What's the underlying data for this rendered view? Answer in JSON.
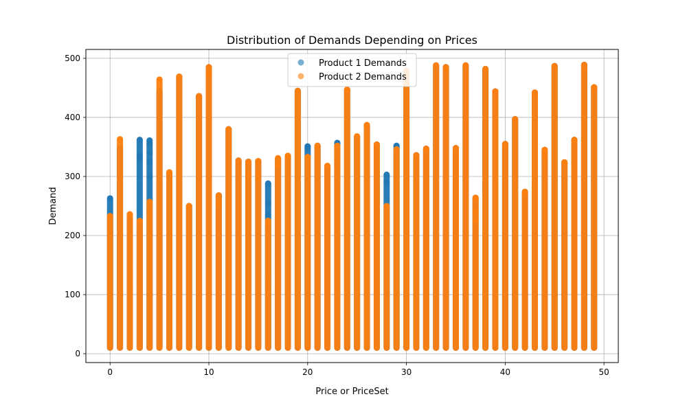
{
  "chart_data": {
    "type": "scatter",
    "title": "Distribution of Demands Depending on Prices",
    "xlabel": "Price or PriceSet",
    "ylabel": "Demand",
    "xlim": [
      -2.45,
      51.45
    ],
    "ylim": [
      -15,
      515
    ],
    "xticks": [
      0,
      10,
      20,
      30,
      40,
      50
    ],
    "yticks": [
      0,
      100,
      200,
      300,
      400,
      500
    ],
    "grid": true,
    "legend_position": "upper-center",
    "series": [
      {
        "name": "Product 1 Demands",
        "color": "#1f77b4",
        "points": [
          {
            "x": 0,
            "min": 10,
            "max": 263
          },
          {
            "x": 1,
            "min": 10,
            "max": 348
          },
          {
            "x": 2,
            "min": 10,
            "max": 228
          },
          {
            "x": 3,
            "min": 10,
            "max": 362
          },
          {
            "x": 4,
            "min": 10,
            "max": 361
          },
          {
            "x": 5,
            "min": 10,
            "max": 444
          },
          {
            "x": 6,
            "min": 10,
            "max": 306
          },
          {
            "x": 7,
            "min": 10,
            "max": 469
          },
          {
            "x": 8,
            "min": 10,
            "max": 250
          },
          {
            "x": 9,
            "min": 10,
            "max": 436
          },
          {
            "x": 10,
            "min": 10,
            "max": 485
          },
          {
            "x": 11,
            "min": 10,
            "max": 268
          },
          {
            "x": 12,
            "min": 10,
            "max": 380
          },
          {
            "x": 13,
            "min": 10,
            "max": 327
          },
          {
            "x": 14,
            "min": 10,
            "max": 325
          },
          {
            "x": 15,
            "min": 10,
            "max": 326
          },
          {
            "x": 16,
            "min": 10,
            "max": 288
          },
          {
            "x": 17,
            "min": 10,
            "max": 330
          },
          {
            "x": 18,
            "min": 10,
            "max": 334
          },
          {
            "x": 19,
            "min": 10,
            "max": 445
          },
          {
            "x": 20,
            "min": 10,
            "max": 351
          },
          {
            "x": 21,
            "min": 10,
            "max": 352
          },
          {
            "x": 22,
            "min": 10,
            "max": 317
          },
          {
            "x": 23,
            "min": 10,
            "max": 357
          },
          {
            "x": 24,
            "min": 10,
            "max": 447
          },
          {
            "x": 25,
            "min": 10,
            "max": 367
          },
          {
            "x": 26,
            "min": 10,
            "max": 387
          },
          {
            "x": 27,
            "min": 10,
            "max": 354
          },
          {
            "x": 28,
            "min": 10,
            "max": 303
          },
          {
            "x": 29,
            "min": 10,
            "max": 352
          },
          {
            "x": 30,
            "min": 10,
            "max": 479
          },
          {
            "x": 31,
            "min": 10,
            "max": 336
          },
          {
            "x": 32,
            "min": 10,
            "max": 347
          },
          {
            "x": 33,
            "min": 10,
            "max": 488
          },
          {
            "x": 34,
            "min": 10,
            "max": 485
          },
          {
            "x": 35,
            "min": 10,
            "max": 348
          },
          {
            "x": 36,
            "min": 10,
            "max": 488
          },
          {
            "x": 37,
            "min": 10,
            "max": 264
          },
          {
            "x": 38,
            "min": 10,
            "max": 482
          },
          {
            "x": 39,
            "min": 10,
            "max": 444
          },
          {
            "x": 40,
            "min": 10,
            "max": 355
          },
          {
            "x": 41,
            "min": 10,
            "max": 397
          },
          {
            "x": 42,
            "min": 10,
            "max": 274
          },
          {
            "x": 43,
            "min": 10,
            "max": 442
          },
          {
            "x": 44,
            "min": 10,
            "max": 345
          },
          {
            "x": 45,
            "min": 10,
            "max": 487
          },
          {
            "x": 46,
            "min": 10,
            "max": 324
          },
          {
            "x": 47,
            "min": 10,
            "max": 362
          },
          {
            "x": 48,
            "min": 10,
            "max": 489
          },
          {
            "x": 49,
            "min": 10,
            "max": 451
          }
        ],
        "outliers": [
          {
            "x": 3,
            "y": 335
          },
          {
            "x": 3,
            "y": 330
          },
          {
            "x": 3,
            "y": 200
          },
          {
            "x": 3,
            "y": 150
          },
          {
            "x": 3,
            "y": 120
          },
          {
            "x": 4,
            "y": 355
          },
          {
            "x": 4,
            "y": 340
          },
          {
            "x": 4,
            "y": 325
          },
          {
            "x": 4,
            "y": 300
          },
          {
            "x": 4,
            "y": 240
          },
          {
            "x": 8,
            "y": 170
          },
          {
            "x": 8,
            "y": 190
          },
          {
            "x": 8,
            "y": 210
          },
          {
            "x": 16,
            "y": 255
          },
          {
            "x": 16,
            "y": 235
          },
          {
            "x": 16,
            "y": 125
          },
          {
            "x": 18,
            "y": 318
          },
          {
            "x": 18,
            "y": 305
          },
          {
            "x": 20,
            "y": 348
          },
          {
            "x": 23,
            "y": 355
          },
          {
            "x": 28,
            "y": 290
          },
          {
            "x": 28,
            "y": 240
          },
          {
            "x": 29,
            "y": 350
          },
          {
            "x": 40,
            "y": 345
          }
        ]
      },
      {
        "name": "Product 2 Demands",
        "color": "#ff7f0e",
        "points": [
          {
            "x": 0,
            "min": 10,
            "max": 233
          },
          {
            "x": 1,
            "min": 10,
            "max": 363
          },
          {
            "x": 2,
            "min": 10,
            "max": 236
          },
          {
            "x": 3,
            "min": 10,
            "max": 225
          },
          {
            "x": 4,
            "min": 10,
            "max": 257
          },
          {
            "x": 5,
            "min": 10,
            "max": 464
          },
          {
            "x": 6,
            "min": 10,
            "max": 307
          },
          {
            "x": 7,
            "min": 10,
            "max": 469
          },
          {
            "x": 8,
            "min": 10,
            "max": 250
          },
          {
            "x": 9,
            "min": 10,
            "max": 436
          },
          {
            "x": 10,
            "min": 10,
            "max": 485
          },
          {
            "x": 11,
            "min": 10,
            "max": 268
          },
          {
            "x": 12,
            "min": 10,
            "max": 380
          },
          {
            "x": 13,
            "min": 10,
            "max": 327
          },
          {
            "x": 14,
            "min": 10,
            "max": 325
          },
          {
            "x": 15,
            "min": 10,
            "max": 326
          },
          {
            "x": 16,
            "min": 10,
            "max": 225
          },
          {
            "x": 17,
            "min": 10,
            "max": 331
          },
          {
            "x": 18,
            "min": 10,
            "max": 335
          },
          {
            "x": 19,
            "min": 10,
            "max": 445
          },
          {
            "x": 20,
            "min": 10,
            "max": 333
          },
          {
            "x": 21,
            "min": 10,
            "max": 352
          },
          {
            "x": 22,
            "min": 10,
            "max": 318
          },
          {
            "x": 23,
            "min": 10,
            "max": 352
          },
          {
            "x": 24,
            "min": 10,
            "max": 447
          },
          {
            "x": 25,
            "min": 10,
            "max": 368
          },
          {
            "x": 26,
            "min": 10,
            "max": 387
          },
          {
            "x": 27,
            "min": 10,
            "max": 354
          },
          {
            "x": 28,
            "min": 10,
            "max": 250
          },
          {
            "x": 29,
            "min": 10,
            "max": 346
          },
          {
            "x": 30,
            "min": 10,
            "max": 479
          },
          {
            "x": 31,
            "min": 10,
            "max": 336
          },
          {
            "x": 32,
            "min": 10,
            "max": 347
          },
          {
            "x": 33,
            "min": 10,
            "max": 488
          },
          {
            "x": 34,
            "min": 10,
            "max": 485
          },
          {
            "x": 35,
            "min": 10,
            "max": 348
          },
          {
            "x": 36,
            "min": 10,
            "max": 488
          },
          {
            "x": 37,
            "min": 10,
            "max": 264
          },
          {
            "x": 38,
            "min": 10,
            "max": 482
          },
          {
            "x": 39,
            "min": 10,
            "max": 444
          },
          {
            "x": 40,
            "min": 10,
            "max": 355
          },
          {
            "x": 41,
            "min": 10,
            "max": 397
          },
          {
            "x": 42,
            "min": 10,
            "max": 274
          },
          {
            "x": 43,
            "min": 10,
            "max": 442
          },
          {
            "x": 44,
            "min": 10,
            "max": 345
          },
          {
            "x": 45,
            "min": 10,
            "max": 487
          },
          {
            "x": 46,
            "min": 10,
            "max": 324
          },
          {
            "x": 47,
            "min": 10,
            "max": 362
          },
          {
            "x": 48,
            "min": 10,
            "max": 489
          },
          {
            "x": 49,
            "min": 10,
            "max": 451
          }
        ],
        "outliers": [
          {
            "x": 6,
            "y": 307
          },
          {
            "x": 10,
            "y": 473
          },
          {
            "x": 11,
            "y": 255
          },
          {
            "x": 14,
            "y": 302
          },
          {
            "x": 15,
            "y": 302
          },
          {
            "x": 17,
            "y": 320
          },
          {
            "x": 18,
            "y": 335
          },
          {
            "x": 24,
            "y": 447
          },
          {
            "x": 26,
            "y": 387
          },
          {
            "x": 37,
            "y": 225
          },
          {
            "x": 37,
            "y": 240
          },
          {
            "x": 44,
            "y": 345
          },
          {
            "x": 44,
            "y": 332
          },
          {
            "x": 46,
            "y": 324
          },
          {
            "x": 49,
            "y": 451
          }
        ]
      }
    ]
  }
}
